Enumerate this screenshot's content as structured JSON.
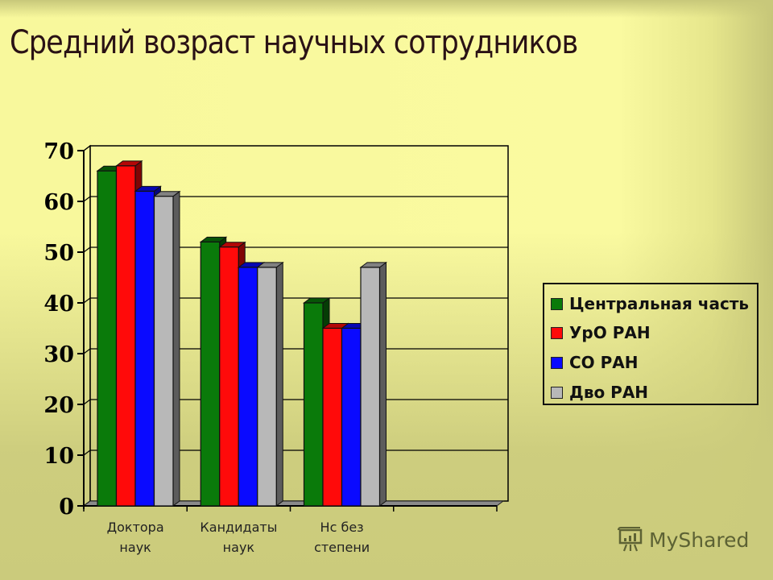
{
  "slide": {
    "title": "Средний возраст научных сотрудников",
    "watermark": "MyShared"
  },
  "legend": {
    "items": [
      {
        "label": "Центральная часть",
        "color": "#0a7a0a"
      },
      {
        "label": "УрО РАН",
        "color": "#ff0a0a"
      },
      {
        "label": "СО РАН",
        "color": "#0a0aff"
      },
      {
        "label": "Дво РАН",
        "color": "#b8b8b8"
      }
    ]
  },
  "chart_data": {
    "type": "bar",
    "title": "Средний возраст научных сотрудников",
    "xlabel": "",
    "ylabel": "",
    "categories": [
      "Доктора наук",
      "Кандидаты наук",
      "Нс без степени",
      ""
    ],
    "category_lines": [
      [
        "Доктора",
        "наук"
      ],
      [
        "Кандидаты",
        "наук"
      ],
      [
        "Нс без",
        "степени"
      ],
      []
    ],
    "series": [
      {
        "name": "Центральная часть",
        "color": "#0a7a0a",
        "values": [
          66,
          52,
          40
        ]
      },
      {
        "name": "УрО РАН",
        "color": "#ff0a0a",
        "values": [
          67,
          51,
          35
        ]
      },
      {
        "name": "СО РАН",
        "color": "#0a0aff",
        "values": [
          62,
          47,
          35
        ]
      },
      {
        "name": "Дво РАН",
        "color": "#b8b8b8",
        "values": [
          61,
          47,
          47
        ]
      }
    ],
    "ylim": [
      0,
      70
    ],
    "yticks": [
      0,
      10,
      20,
      30,
      40,
      50,
      60,
      70
    ],
    "grid": true,
    "legend_position": "right",
    "style": "3d-clustered-column"
  }
}
